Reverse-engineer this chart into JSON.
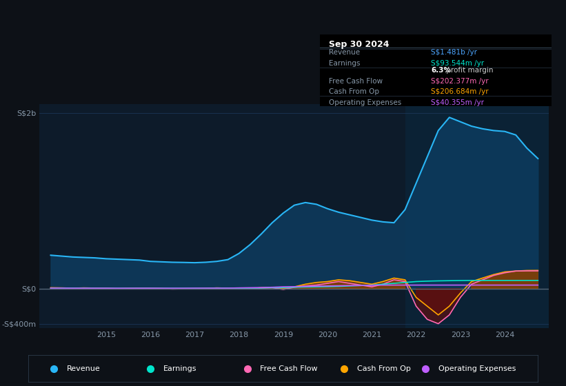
{
  "bg_color": "#0d1117",
  "plot_bg_color": "#0d1b2a",
  "grid_color": "#1e3a5f",
  "text_color": "#8899aa",
  "title_color": "#ffffff",
  "info_box": {
    "title": "Sep 30 2024",
    "rows": [
      {
        "label": "Revenue",
        "value": "S$1.481b /yr",
        "value_color": "#4da6ff"
      },
      {
        "label": "Earnings",
        "value": "S$93.544m /yr",
        "value_color": "#00e5cc"
      },
      {
        "label": "",
        "value": "6.3% profit margin",
        "value_color": "#ffffff"
      },
      {
        "label": "Free Cash Flow",
        "value": "S$202.377m /yr",
        "value_color": "#ff69b4"
      },
      {
        "label": "Cash From Op",
        "value": "S$206.684m /yr",
        "value_color": "#ffa500"
      },
      {
        "label": "Operating Expenses",
        "value": "S$40.355m /yr",
        "value_color": "#bf5fff"
      }
    ]
  },
  "years": [
    2013.75,
    2014.0,
    2014.25,
    2014.5,
    2014.75,
    2015.0,
    2015.25,
    2015.5,
    2015.75,
    2016.0,
    2016.25,
    2016.5,
    2016.75,
    2017.0,
    2017.25,
    2017.5,
    2017.75,
    2018.0,
    2018.25,
    2018.5,
    2018.75,
    2019.0,
    2019.25,
    2019.5,
    2019.75,
    2020.0,
    2020.25,
    2020.5,
    2020.75,
    2021.0,
    2021.25,
    2021.5,
    2021.75,
    2022.0,
    2022.25,
    2022.5,
    2022.75,
    2023.0,
    2023.25,
    2023.5,
    2023.75,
    2024.0,
    2024.25,
    2024.5,
    2024.75
  ],
  "revenue": [
    380,
    370,
    360,
    355,
    350,
    340,
    335,
    330,
    325,
    310,
    305,
    300,
    298,
    295,
    300,
    310,
    330,
    400,
    500,
    620,
    750,
    860,
    950,
    980,
    960,
    910,
    870,
    840,
    810,
    780,
    760,
    750,
    900,
    1200,
    1500,
    1800,
    1950,
    1900,
    1850,
    1820,
    1800,
    1790,
    1750,
    1600,
    1481
  ],
  "earnings": [
    5,
    5,
    5,
    4,
    4,
    4,
    4,
    4,
    4,
    4,
    4,
    4,
    4,
    4,
    4,
    5,
    5,
    5,
    6,
    7,
    10,
    12,
    15,
    18,
    20,
    22,
    25,
    30,
    35,
    40,
    50,
    60,
    70,
    80,
    85,
    88,
    90,
    92,
    93,
    93,
    93,
    93,
    93,
    93,
    93
  ],
  "free_cash_flow": [
    5,
    4,
    3,
    5,
    4,
    3,
    -2,
    -1,
    2,
    3,
    0,
    -5,
    -3,
    -2,
    0,
    5,
    3,
    0,
    -2,
    5,
    10,
    -10,
    15,
    30,
    40,
    60,
    80,
    60,
    40,
    20,
    50,
    100,
    80,
    -200,
    -350,
    -400,
    -300,
    -100,
    50,
    100,
    150,
    180,
    200,
    202,
    202
  ],
  "cash_from_op": [
    10,
    8,
    5,
    8,
    6,
    5,
    0,
    3,
    5,
    5,
    2,
    -2,
    0,
    0,
    3,
    8,
    5,
    5,
    0,
    10,
    15,
    0,
    20,
    50,
    70,
    80,
    100,
    90,
    70,
    50,
    80,
    120,
    100,
    -100,
    -200,
    -300,
    -200,
    -50,
    80,
    120,
    160,
    190,
    200,
    206,
    207
  ],
  "operating_expenses": [
    5,
    5,
    4,
    4,
    4,
    4,
    4,
    4,
    4,
    4,
    4,
    4,
    4,
    5,
    5,
    5,
    5,
    8,
    10,
    12,
    15,
    20,
    22,
    25,
    28,
    30,
    32,
    35,
    35,
    38,
    40,
    40,
    40,
    40,
    40,
    40,
    40,
    40,
    40,
    40,
    40,
    40,
    40,
    40,
    40
  ],
  "revenue_color": "#29b6f6",
  "revenue_fill": "#0d3a5c",
  "earnings_color": "#00e5cc",
  "free_cash_flow_color": "#ff69b4",
  "cash_from_op_color": "#ffa500",
  "operating_expenses_color": "#bf5fff",
  "xlim": [
    2013.5,
    2025.0
  ],
  "ylim": [
    -450,
    2100
  ],
  "y_ticks": [
    -400,
    0,
    2000
  ],
  "y_tick_labels": [
    "-S$400m",
    "S$0",
    "S$2b"
  ],
  "x_ticks": [
    2015,
    2016,
    2017,
    2018,
    2019,
    2020,
    2021,
    2022,
    2023,
    2024
  ],
  "legend_items": [
    {
      "label": "Revenue",
      "color": "#29b6f6"
    },
    {
      "label": "Earnings",
      "color": "#00e5cc"
    },
    {
      "label": "Free Cash Flow",
      "color": "#ff69b4"
    },
    {
      "label": "Cash From Op",
      "color": "#ffa500"
    },
    {
      "label": "Operating Expenses",
      "color": "#bf5fff"
    }
  ]
}
